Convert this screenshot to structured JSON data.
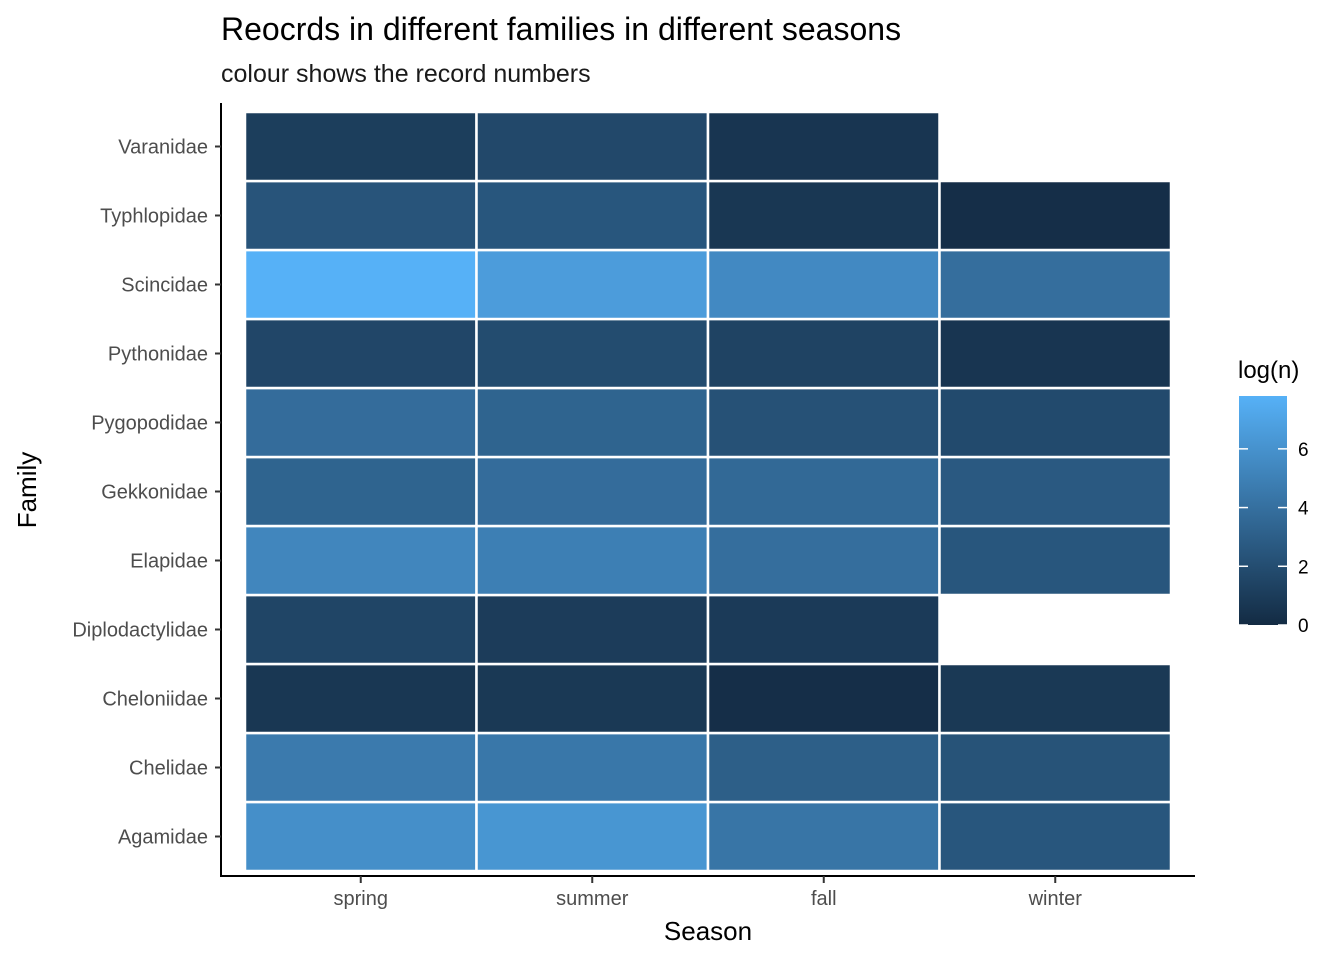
{
  "chart_data": {
    "type": "heatmap",
    "title": "Reocrds in different families in different seasons",
    "subtitle": "colour shows the record numbers",
    "xlabel": "Season",
    "ylabel": "Family",
    "x_categories": [
      "spring",
      "summer",
      "fall",
      "winter"
    ],
    "y_categories": [
      "Agamidae",
      "Chelidae",
      "Cheloniidae",
      "Diplodactylidae",
      "Elapidae",
      "Gekkonidae",
      "Pygopodidae",
      "Pythonidae",
      "Scincidae",
      "Typhlopidae",
      "Varanidae"
    ],
    "values": [
      [
        5.8,
        6.2,
        4.3,
        2.5
      ],
      [
        4.6,
        4.4,
        3.0,
        2.3
      ],
      [
        0.7,
        0.8,
        0.2,
        0.8
      ],
      [
        1.5,
        1.0,
        0.9,
        null
      ],
      [
        5.3,
        4.9,
        3.9,
        2.5
      ],
      [
        3.3,
        3.8,
        3.6,
        2.7
      ],
      [
        3.8,
        3.3,
        2.2,
        1.8
      ],
      [
        1.6,
        1.9,
        1.4,
        0.6
      ],
      [
        7.8,
        6.6,
        5.5,
        3.9
      ],
      [
        2.4,
        2.5,
        0.7,
        0.2
      ],
      [
        1.1,
        1.7,
        0.6,
        null
      ]
    ],
    "legend": {
      "title": "log(n)",
      "position": "right",
      "range": [
        0,
        7.8
      ],
      "ticks": [
        0,
        2,
        4,
        6
      ],
      "color_low": "#132B43",
      "color_high": "#56B1F7"
    }
  }
}
